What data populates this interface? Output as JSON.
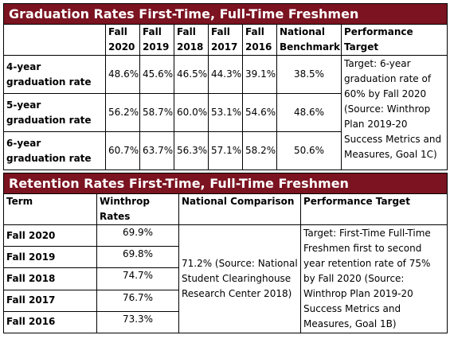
{
  "graduation": {
    "title": "Graduation Rates First-Time, Full-Time Freshmen",
    "headers": [
      "Fall 2020",
      "Fall 2019",
      "Fall 2018",
      "Fall 2017",
      "Fall 2016",
      "National Benchmark",
      "Performance Target"
    ],
    "rows": [
      {
        "label": "4-year graduation rate",
        "values": [
          "48.6%",
          "45.6%",
          "46.5%",
          "44.3%",
          "39.1%",
          "38.5%"
        ]
      },
      {
        "label": "5-year graduation rate",
        "values": [
          "56.2%",
          "58.7%",
          "60.0%",
          "53.1%",
          "54.6%",
          "48.6%"
        ]
      },
      {
        "label": "6-year graduation rate",
        "values": [
          "60.7%",
          "63.7%",
          "56.3%",
          "57.1%",
          "58.2%",
          "50.6%"
        ]
      }
    ],
    "target": "Target: 6-year graduation rate of 60% by Fall 2020 (Source: Winthrop Plan 2019-20 Success Metrics and Measures, Goal 1C)"
  },
  "retention": {
    "title": "Retention Rates First-Time, Full-Time Freshmen",
    "headers": [
      "Term",
      "Winthrop Rates",
      "National Comparison",
      "Performance Target"
    ],
    "rows": [
      {
        "term": "Fall 2020",
        "rate": "69.9%"
      },
      {
        "term": "Fall 2019",
        "rate": "69.8%"
      },
      {
        "term": "Fall 2018",
        "rate": "74.7%"
      },
      {
        "term": "Fall 2017",
        "rate": "76.7%"
      },
      {
        "term": "Fall 2016",
        "rate": "73.3%"
      }
    ],
    "national": "71.2% (Source: National Student Clearinghouse Research Center 2018)",
    "target": "Target: First-Time Full-Time Freshmen first to second year retention rate of 75% by Fall 2020 (Source: Winthrop Plan 2019-20 Success Metrics and Measures, Goal 1B)"
  }
}
